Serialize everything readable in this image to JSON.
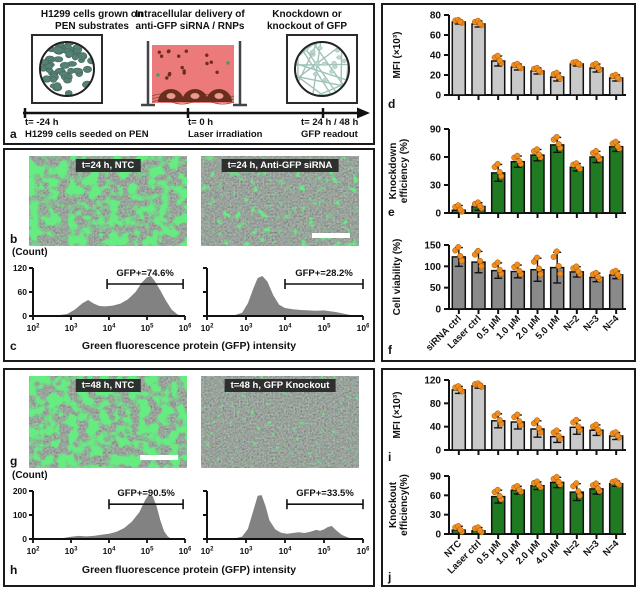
{
  "panel_a": {
    "letter": "a",
    "headers": [
      [
        "H1299 cells grown on",
        "PEN substrates"
      ],
      [
        "Intracellular delivery of",
        "anti-GFP siRNA / RNPs"
      ],
      [
        "Knockdown or",
        "knockout of GFP"
      ]
    ],
    "timeline": [
      {
        "time": "t= -24 h",
        "event": "H1299 cells seeded on PEN"
      },
      {
        "time": "t= 0 h",
        "event": "Laser irradiation"
      },
      {
        "time": "t= 24 h / 48 h",
        "event": "GFP readout"
      }
    ]
  },
  "panel_b": {
    "letter": "b",
    "left_image_label": "t=24 h, NTC",
    "right_image_label": "t=24 h, Anti-GFP siRNA"
  },
  "panel_c": {
    "letter": "c",
    "ylabel": "(Count)",
    "xlabel": "Green fluorescence protein (GFP) intensity"
  },
  "panel_d": {
    "letter": "d"
  },
  "panel_e": {
    "letter": "e"
  },
  "panel_f": {
    "letter": "f"
  },
  "panel_g": {
    "letter": "g",
    "left_image_label": "t=48 h, NTC",
    "right_image_label": "t=48 h, GFP Knockout"
  },
  "panel_h": {
    "letter": "h",
    "ylabel": "(Count)",
    "xlabel": "Green fluorescence protein (GFP) intensity"
  },
  "panel_i": {
    "letter": "i"
  },
  "panel_j": {
    "letter": "j"
  },
  "colors": {
    "bar_light": "#c9c9c9",
    "bar_dark": "#8a8a8a",
    "bar_green": "#1f7a22",
    "points_orange": "#f28c1e",
    "hist_gray": "#828282",
    "micro_green": "#35e83a"
  },
  "chart_data": {
    "hist_c_left": {
      "type": "area",
      "panel": "c",
      "condition": "t=24 h, NTC",
      "x_ticks_log": [
        2,
        3,
        4,
        5,
        6
      ],
      "ymax": 120,
      "yticks": [
        0,
        60,
        120
      ],
      "gate": {
        "label": "GFP+=74.6%",
        "from_log": 3.95,
        "to_log": 5.95,
        "line_y": 80
      },
      "points_log_count": [
        [
          2.0,
          0
        ],
        [
          2.6,
          1
        ],
        [
          2.9,
          5
        ],
        [
          3.1,
          16
        ],
        [
          3.3,
          32
        ],
        [
          3.45,
          40
        ],
        [
          3.6,
          31
        ],
        [
          3.75,
          25
        ],
        [
          3.9,
          24
        ],
        [
          4.1,
          26
        ],
        [
          4.3,
          31
        ],
        [
          4.5,
          42
        ],
        [
          4.7,
          60
        ],
        [
          4.85,
          82
        ],
        [
          5.0,
          97
        ],
        [
          5.1,
          100
        ],
        [
          5.2,
          88
        ],
        [
          5.35,
          64
        ],
        [
          5.5,
          38
        ],
        [
          5.65,
          16
        ],
        [
          5.8,
          4
        ],
        [
          5.9,
          0
        ]
      ]
    },
    "hist_c_right": {
      "type": "area",
      "panel": "c",
      "condition": "t=24 h, Anti-GFP siRNA",
      "x_ticks_log": [
        2,
        3,
        4,
        5,
        6
      ],
      "ymax": 120,
      "yticks": [
        0,
        60,
        120
      ],
      "gate": {
        "label": "GFP+=28.2%",
        "from_log": 4.0,
        "to_log": 6.0,
        "line_y": 80
      },
      "points_log_count": [
        [
          2.0,
          0
        ],
        [
          2.7,
          2
        ],
        [
          2.9,
          8
        ],
        [
          3.05,
          32
        ],
        [
          3.2,
          72
        ],
        [
          3.3,
          95
        ],
        [
          3.42,
          100
        ],
        [
          3.55,
          86
        ],
        [
          3.7,
          52
        ],
        [
          3.85,
          28
        ],
        [
          4.0,
          20
        ],
        [
          4.2,
          17
        ],
        [
          4.4,
          15
        ],
        [
          4.6,
          14
        ],
        [
          4.8,
          13
        ],
        [
          5.0,
          14
        ],
        [
          5.15,
          12
        ],
        [
          5.3,
          10
        ],
        [
          5.5,
          6
        ],
        [
          5.7,
          2
        ],
        [
          5.85,
          0
        ]
      ]
    },
    "hist_h_left": {
      "type": "area",
      "panel": "h",
      "condition": "t=48 h, NTC",
      "x_ticks_log": [
        2,
        3,
        4,
        5,
        6
      ],
      "ymax": 200,
      "yticks": [
        0,
        100,
        200
      ],
      "gate": {
        "label": "GFP+=90.5%",
        "from_log": 4.0,
        "to_log": 5.95,
        "line_y": 145
      },
      "points_log_count": [
        [
          2.0,
          0
        ],
        [
          2.8,
          4
        ],
        [
          3.0,
          9
        ],
        [
          3.2,
          13
        ],
        [
          3.4,
          11
        ],
        [
          3.6,
          13
        ],
        [
          3.8,
          18
        ],
        [
          4.0,
          22
        ],
        [
          4.2,
          30
        ],
        [
          4.4,
          46
        ],
        [
          4.6,
          72
        ],
        [
          4.8,
          112
        ],
        [
          4.95,
          162
        ],
        [
          5.05,
          185
        ],
        [
          5.15,
          178
        ],
        [
          5.25,
          138
        ],
        [
          5.35,
          78
        ],
        [
          5.45,
          32
        ],
        [
          5.55,
          10
        ],
        [
          5.65,
          0
        ]
      ]
    },
    "hist_h_right": {
      "type": "area",
      "panel": "h",
      "condition": "t=48 h, GFP Knockout",
      "x_ticks_log": [
        2,
        3,
        4,
        5,
        6
      ],
      "ymax": 200,
      "yticks": [
        0,
        100,
        200
      ],
      "gate": {
        "label": "GFP+=33.5%",
        "from_log": 4.05,
        "to_log": 6.0,
        "line_y": 145
      },
      "points_log_count": [
        [
          2.0,
          0
        ],
        [
          2.7,
          2
        ],
        [
          2.9,
          10
        ],
        [
          3.05,
          42
        ],
        [
          3.2,
          125
        ],
        [
          3.3,
          180
        ],
        [
          3.4,
          183
        ],
        [
          3.5,
          138
        ],
        [
          3.6,
          78
        ],
        [
          3.75,
          40
        ],
        [
          3.9,
          26
        ],
        [
          4.05,
          22
        ],
        [
          4.2,
          25
        ],
        [
          4.35,
          28
        ],
        [
          4.5,
          25
        ],
        [
          4.65,
          30
        ],
        [
          4.8,
          38
        ],
        [
          4.9,
          34
        ],
        [
          5.0,
          40
        ],
        [
          5.1,
          50
        ],
        [
          5.2,
          54
        ],
        [
          5.3,
          38
        ],
        [
          5.45,
          18
        ],
        [
          5.6,
          7
        ],
        [
          5.75,
          0
        ]
      ]
    },
    "bar_d": {
      "type": "bar",
      "panel": "d",
      "ylabel_lines": [
        "MFI (×10³)"
      ],
      "ymax": 80,
      "yticks": [
        0,
        20,
        40,
        60,
        80
      ],
      "bar_color": "light",
      "categories": [
        "siRNA ctrl",
        "Laser ctrl",
        "0.5 μM",
        "1.0 μM",
        "2.0 μM",
        "5.0 μM",
        "N=2",
        "N=3",
        "N=4"
      ],
      "category_labels_visible": false,
      "values": [
        73,
        71,
        34,
        28,
        24,
        18,
        31,
        27,
        17
      ],
      "errors": [
        2,
        3,
        5,
        3,
        3,
        4,
        2,
        4,
        3
      ]
    },
    "bar_e": {
      "type": "bar",
      "panel": "e",
      "ylabel_lines": [
        "Knockdown",
        "efficiency (%)"
      ],
      "ymax": 90,
      "yticks": [
        0,
        30,
        60,
        90
      ],
      "bar_color": "green",
      "categories": [
        "siRNA ctrl",
        "Laser ctrl",
        "0.5 μM",
        "1.0 μM",
        "2.0 μM",
        "5.0 μM",
        "N=2",
        "N=3",
        "N=4"
      ],
      "category_labels_visible": false,
      "values": [
        3,
        7,
        43,
        55,
        62,
        73,
        49,
        60,
        71
      ],
      "errors": [
        5,
        4,
        9,
        6,
        6,
        8,
        4,
        6,
        5
      ]
    },
    "bar_f": {
      "type": "bar",
      "panel": "f",
      "ylabel_lines": [
        "Cell viability (%)"
      ],
      "ymax": 150,
      "yticks": [
        0,
        50,
        100,
        150
      ],
      "bar_color": "dark",
      "categories": [
        "siRNA ctrl",
        "Laser ctrl",
        "0.5 μM",
        "1.0 μM",
        "2.0 μM",
        "5.0 μM",
        "N=2",
        "N=3",
        "N=4"
      ],
      "category_labels_visible": true,
      "values": [
        122,
        110,
        90,
        88,
        92,
        97,
        87,
        74,
        80
      ],
      "errors": [
        22,
        25,
        18,
        15,
        27,
        36,
        12,
        10,
        9
      ]
    },
    "bar_i": {
      "type": "bar",
      "panel": "i",
      "ylabel_lines": [
        "MFI (×10³)"
      ],
      "ymax": 120,
      "yticks": [
        0,
        40,
        80,
        120
      ],
      "bar_color": "light",
      "categories": [
        "NTC",
        "Laser ctrl",
        "0.5 μM",
        "1.0 μM",
        "2.0 μM",
        "4.0 μM",
        "N=2",
        "N=3",
        "N=4"
      ],
      "category_labels_visible": false,
      "values": [
        103,
        110,
        50,
        48,
        36,
        23,
        39,
        34,
        24
      ],
      "errors": [
        6,
        4,
        12,
        12,
        14,
        10,
        12,
        9,
        6
      ]
    },
    "bar_j": {
      "type": "bar",
      "panel": "j",
      "ylabel_lines": [
        "Knockout",
        "efficiency(%)"
      ],
      "ymax": 90,
      "yticks": [
        0,
        30,
        60,
        90
      ],
      "bar_color": "green",
      "categories": [
        "NTC",
        "Laser ctrl",
        "0.5 μM",
        "1.0 μM",
        "2.0 μM",
        "4.0 μM",
        "N=2",
        "N=3",
        "N=4"
      ],
      "category_labels_visible": true,
      "values": [
        6,
        5,
        58,
        68,
        75,
        80,
        65,
        70,
        78
      ],
      "errors": [
        6,
        5,
        10,
        6,
        6,
        8,
        13,
        8,
        4
      ]
    }
  }
}
